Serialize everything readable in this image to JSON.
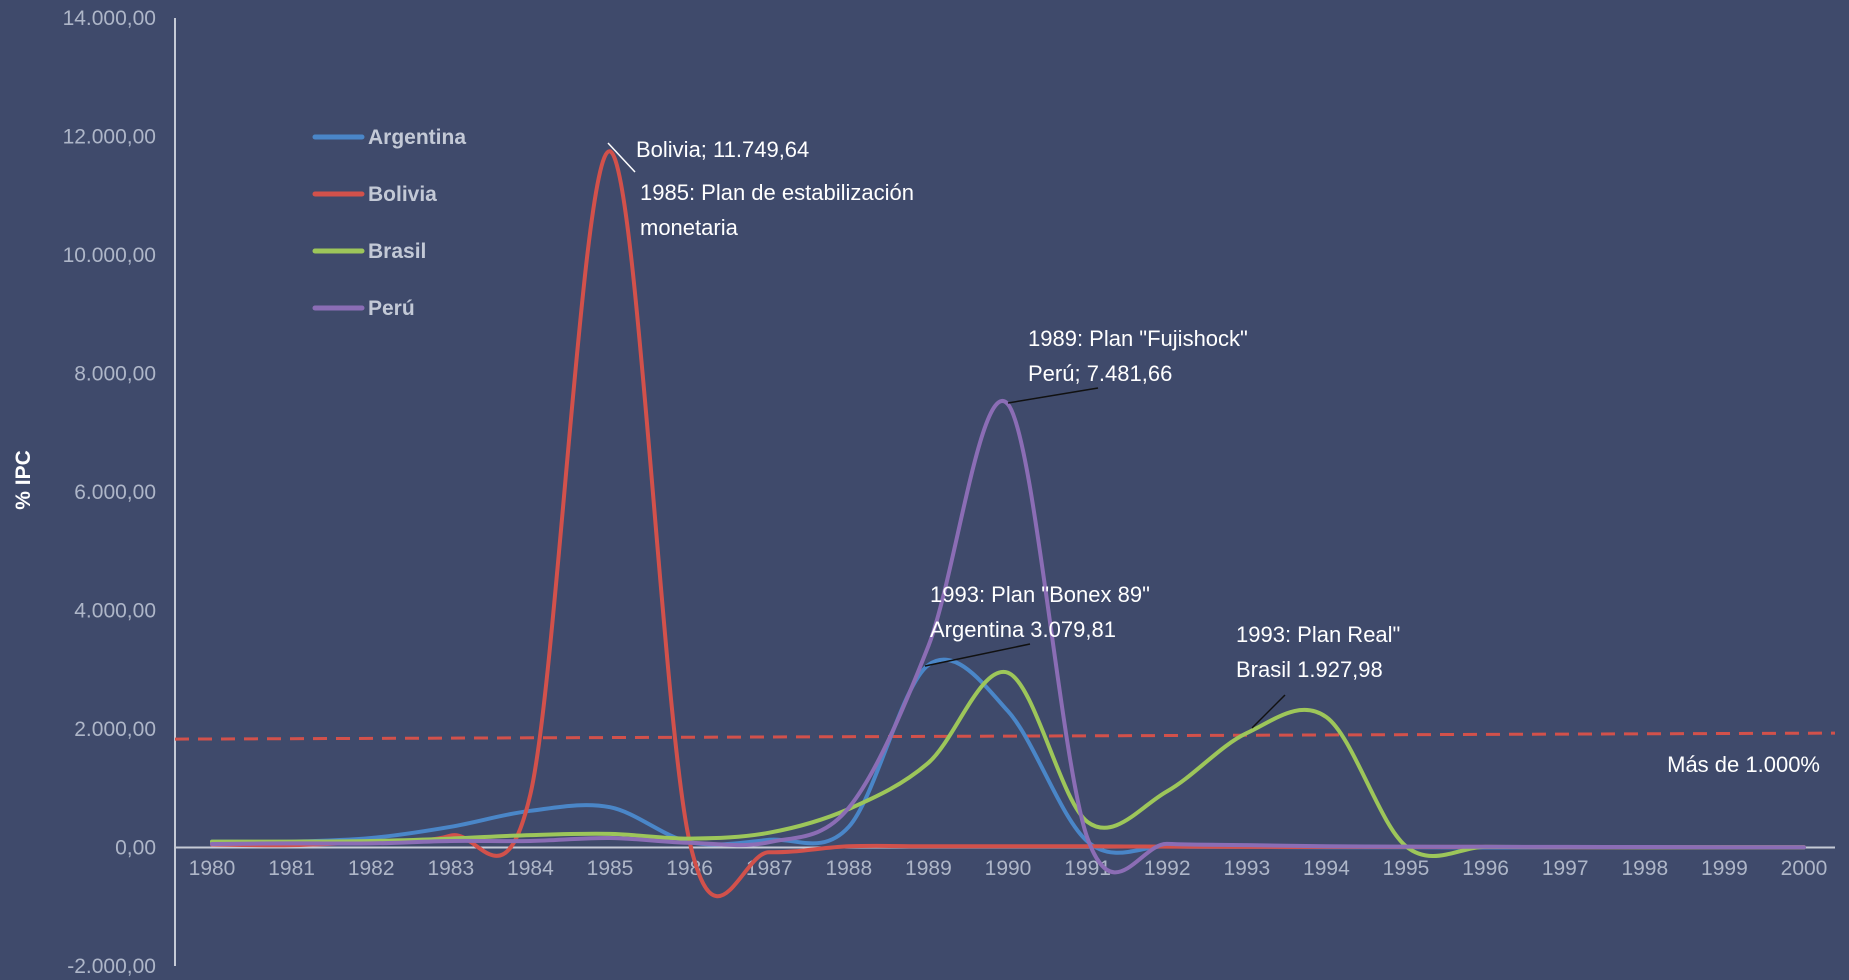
{
  "chart_data": {
    "type": "line",
    "ylabel": "% IPC",
    "ylim": [
      -2000,
      14000
    ],
    "y_ticks": [
      "-2.000,00",
      "0,00",
      "2.000,00",
      "4.000,00",
      "6.000,00",
      "8.000,00",
      "10.000,00",
      "12.000,00",
      "14.000,00"
    ],
    "y_tick_values": [
      -2000,
      0,
      2000,
      4000,
      6000,
      8000,
      10000,
      12000,
      14000
    ],
    "categories": [
      "1980",
      "1981",
      "1982",
      "1983",
      "1984",
      "1985",
      "1986",
      "1987",
      "1988",
      "1989",
      "1990",
      "1991",
      "1992",
      "1993",
      "1994",
      "1995",
      "1996",
      "1997",
      "1998",
      "1999",
      "2000"
    ],
    "series": [
      {
        "name": "Argentina",
        "color": "#4a86c8",
        "values": [
          100,
          100,
          160,
          350,
          620,
          680,
          90,
          130,
          350,
          3080,
          2300,
          100,
          20,
          10,
          5,
          3,
          0,
          0,
          0,
          0,
          0
        ]
      },
      {
        "name": "Bolivia",
        "color": "#d2514b",
        "values": [
          50,
          40,
          100,
          200,
          900,
          11750,
          100,
          -80,
          20,
          20,
          20,
          20,
          15,
          10,
          10,
          10,
          10,
          5,
          5,
          5,
          3
        ]
      },
      {
        "name": "Brasil",
        "color": "#9dc65a",
        "values": [
          100,
          100,
          110,
          150,
          210,
          230,
          150,
          250,
          650,
          1430,
          2950,
          430,
          950,
          1930,
          2200,
          20,
          10,
          8,
          5,
          5,
          5
        ]
      },
      {
        "name": "Perú",
        "color": "#8b6db5",
        "values": [
          60,
          70,
          70,
          110,
          110,
          160,
          80,
          90,
          670,
          3400,
          7480,
          150,
          60,
          40,
          20,
          15,
          12,
          10,
          8,
          5,
          4
        ]
      }
    ],
    "reference_line": {
      "value": 1880,
      "label": "Más de 1.000%",
      "color": "#d2514b",
      "style": "dashed"
    },
    "legend_position": "top-left",
    "annotations": [
      {
        "lines": [
          "Bolivia; 11.749,64"
        ],
        "series": "Bolivia",
        "x": "1985",
        "y": 11749.64
      },
      {
        "lines": [
          "1985: Plan de estabilización",
          "monetaria"
        ]
      },
      {
        "lines": [
          "1989: Plan \"Fujishock\"",
          "Perú; 7.481,66"
        ],
        "series": "Perú",
        "x": "1990",
        "y": 7481.66
      },
      {
        "lines": [
          "1993: Plan \"Bonex 89\"",
          "Argentina  3.079,81"
        ],
        "series": "Argentina",
        "x": "1989",
        "y": 3079.81
      },
      {
        "lines": [
          "1993: Plan Real\"",
          "Brasil  1.927,98"
        ],
        "series": "Brasil",
        "x": "1993",
        "y": 1927.98
      }
    ]
  }
}
